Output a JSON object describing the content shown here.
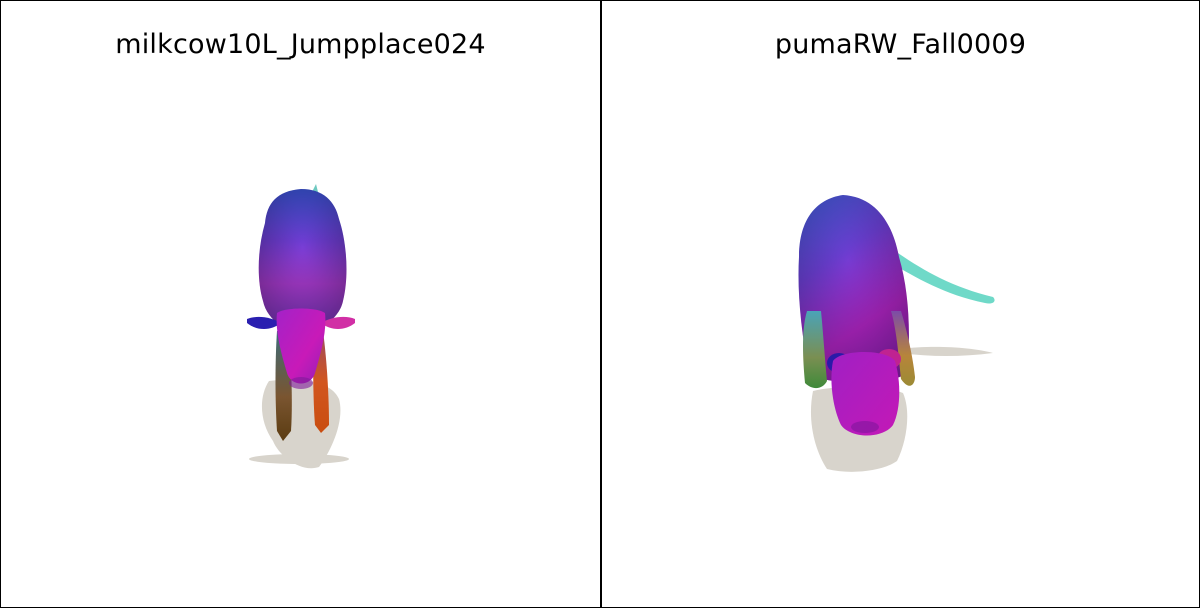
{
  "panels": [
    {
      "title": "milkcow10L_Jumpplace024"
    },
    {
      "title": "pumaRW_Fall0009"
    }
  ]
}
